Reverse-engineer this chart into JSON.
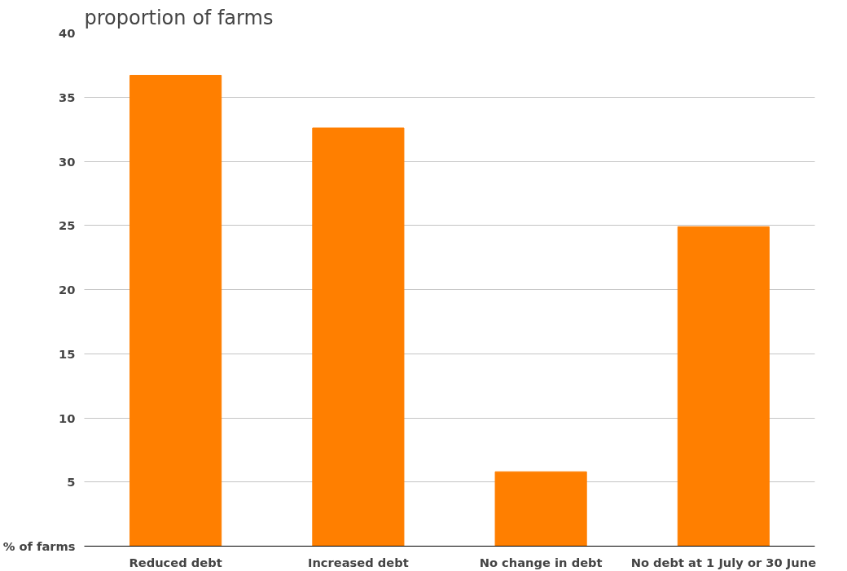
{
  "chart_data": {
    "type": "bar",
    "title": "proportion of farms",
    "categories": [
      "Reduced debt",
      "Increased debt",
      "No change in debt",
      "No debt at 1 July or 30 June"
    ],
    "values": [
      36.7,
      32.6,
      5.8,
      24.9
    ],
    "color": "#ff7f00",
    "ylim": [
      0,
      40
    ],
    "yticks": [
      {
        "value": 0,
        "label": "% of farms"
      },
      5,
      10,
      15,
      20,
      25,
      30,
      35,
      40
    ],
    "grid": "y"
  }
}
